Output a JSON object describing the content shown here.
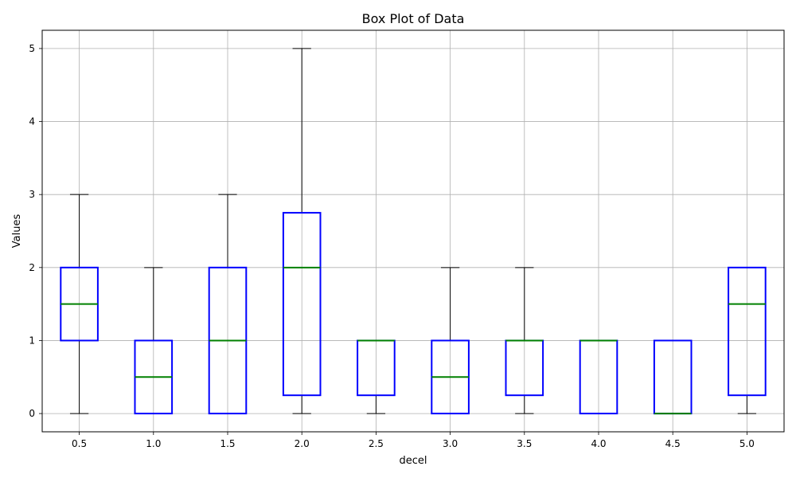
{
  "chart_data": {
    "type": "box",
    "title": "Box Plot of Data",
    "xlabel": "decel",
    "ylabel": "Values",
    "categories": [
      "0.5",
      "1.0",
      "1.5",
      "2.0",
      "2.5",
      "3.0",
      "3.5",
      "4.0",
      "4.5",
      "5.0"
    ],
    "boxes": [
      {
        "category": "0.5",
        "whisker_low": 0,
        "q1": 1,
        "median": 1.5,
        "q3": 2,
        "whisker_high": 3
      },
      {
        "category": "1.0",
        "whisker_low": 0,
        "q1": 0,
        "median": 0.5,
        "q3": 1,
        "whisker_high": 2
      },
      {
        "category": "1.5",
        "whisker_low": 0,
        "q1": 0,
        "median": 1,
        "q3": 2,
        "whisker_high": 3
      },
      {
        "category": "2.0",
        "whisker_low": 0,
        "q1": 0.25,
        "median": 2,
        "q3": 2.75,
        "whisker_high": 5
      },
      {
        "category": "2.5",
        "whisker_low": 0,
        "q1": 0.25,
        "median": 1,
        "q3": 1,
        "whisker_high": 1
      },
      {
        "category": "3.0",
        "whisker_low": 0,
        "q1": 0,
        "median": 0.5,
        "q3": 1,
        "whisker_high": 2
      },
      {
        "category": "3.5",
        "whisker_low": 0,
        "q1": 0.25,
        "median": 1,
        "q3": 1,
        "whisker_high": 2
      },
      {
        "category": "4.0",
        "whisker_low": 0,
        "q1": 0,
        "median": 1,
        "q3": 1,
        "whisker_high": 1
      },
      {
        "category": "4.5",
        "whisker_low": 0,
        "q1": 0,
        "median": 0,
        "q3": 1,
        "whisker_high": 1
      },
      {
        "category": "5.0",
        "whisker_low": 0,
        "q1": 0.25,
        "median": 1.5,
        "q3": 2,
        "whisker_high": 2
      }
    ],
    "yticks": [
      0,
      1,
      2,
      3,
      4,
      5
    ],
    "ylim": [
      -0.25,
      5.25
    ],
    "grid": true,
    "colors": {
      "box": "#0000ff",
      "median": "#008000",
      "whisker": "#000000",
      "grid": "#b0b0b0"
    }
  }
}
